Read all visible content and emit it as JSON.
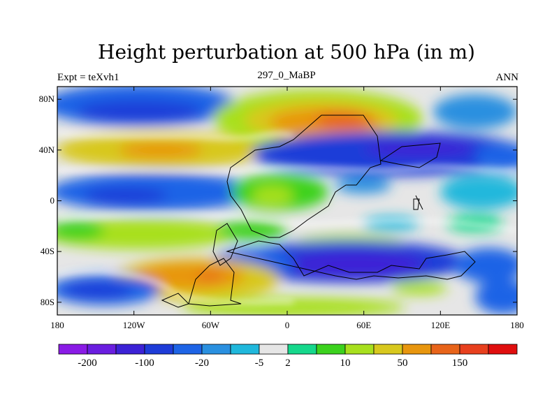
{
  "map": {
    "title": "Height perturbation at 500 hPa (in m)",
    "left_label": "Expt = teXvh1",
    "center_label": "297_0_MaBP",
    "right_label": "ANN",
    "lat_ticks": [
      {
        "value": 80,
        "label": "80N"
      },
      {
        "value": 40,
        "label": "40N"
      },
      {
        "value": 0,
        "label": "0"
      },
      {
        "value": -40,
        "label": "40S"
      },
      {
        "value": -80,
        "label": "80S"
      }
    ],
    "lon_ticks": [
      {
        "value": -180,
        "label": "180"
      },
      {
        "value": -120,
        "label": "120W"
      },
      {
        "value": -60,
        "label": "60W"
      },
      {
        "value": 0,
        "label": "0"
      },
      {
        "value": 60,
        "label": "60E"
      },
      {
        "value": 120,
        "label": "120E"
      },
      {
        "value": 180,
        "label": "180"
      }
    ],
    "extent": {
      "lon": [
        -180,
        180
      ],
      "lat": [
        -90,
        90
      ]
    }
  },
  "colorbar": {
    "colors": [
      "#8a1be6",
      "#6a1ee0",
      "#3c22d6",
      "#1e3cd8",
      "#1e64e6",
      "#2a90e0",
      "#20b8dc",
      "#e6e6e6",
      "#16d88c",
      "#3cd21e",
      "#a8e01e",
      "#d8c81e",
      "#e8960e",
      "#e8641a",
      "#e8401e",
      "#e00e0e"
    ],
    "boundary_labels": [
      {
        "index": 1,
        "label": "-200"
      },
      {
        "index": 3,
        "label": "-100"
      },
      {
        "index": 5,
        "label": "-20"
      },
      {
        "index": 7,
        "label": "-5"
      },
      {
        "index": 8,
        "label": "2"
      },
      {
        "index": 10,
        "label": "10"
      },
      {
        "index": 12,
        "label": "50"
      },
      {
        "index": 14,
        "label": "150"
      }
    ]
  },
  "chart_data": {
    "type": "heatmap",
    "title": "Height perturbation at 500 hPa (in m)",
    "units": "m",
    "x_range": [
      -180,
      180
    ],
    "y_range": [
      -90,
      90
    ],
    "features": [
      {
        "lon": 80,
        "lat": 25,
        "value": -120,
        "desc": "strong negative band"
      },
      {
        "lon": 50,
        "lat": 58,
        "value": 120,
        "desc": "positive center"
      },
      {
        "lon": -120,
        "lat": 40,
        "value": 60
      },
      {
        "lon": -140,
        "lat": 65,
        "value": -50
      },
      {
        "lon": -120,
        "lat": 5,
        "value": -40
      },
      {
        "lon": 80,
        "lat": -50,
        "value": -110
      },
      {
        "lon": -100,
        "lat": -60,
        "value": 100
      },
      {
        "lon": -160,
        "lat": -82,
        "value": -80
      }
    ]
  }
}
